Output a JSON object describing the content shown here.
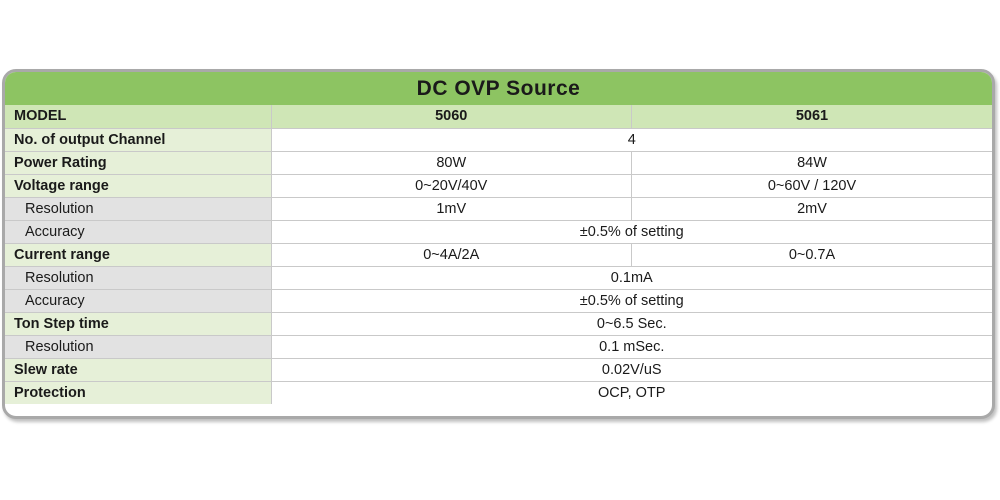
{
  "title": "DC OVP Source",
  "header": {
    "label": "MODEL",
    "models": [
      "5060",
      "5061"
    ]
  },
  "rows": [
    {
      "label": "No. of output Channel",
      "value": "4"
    },
    {
      "label": "Power Rating",
      "values": [
        "80W",
        "84W"
      ]
    },
    {
      "label": "Voltage range",
      "values": [
        "0~20V/40V",
        "0~60V / 120V"
      ]
    },
    {
      "label": "Resolution",
      "values": [
        "1mV",
        "2mV"
      ]
    },
    {
      "label": "Accuracy",
      "value": "±0.5% of setting"
    },
    {
      "label": "Current range",
      "values": [
        "0~4A/2A",
        "0~0.7A"
      ]
    },
    {
      "label": "Resolution",
      "value": "0.1mA"
    },
    {
      "label": "Accuracy",
      "value": "±0.5% of setting"
    },
    {
      "label": "Ton Step time",
      "value": "0~6.5 Sec."
    },
    {
      "label": "Resolution",
      "value": "0.1 mSec."
    },
    {
      "label": "Slew rate",
      "value": "0.02V/uS"
    },
    {
      "label": "Protection",
      "value": "OCP, OTP"
    }
  ],
  "colors": {
    "title_bar": "#8dc462",
    "header_row": "#cfe6b6",
    "main_label_bg": "#e6f0d8",
    "sub_label_bg": "#e2e2e2",
    "frame_border": "#a9a9a9"
  }
}
